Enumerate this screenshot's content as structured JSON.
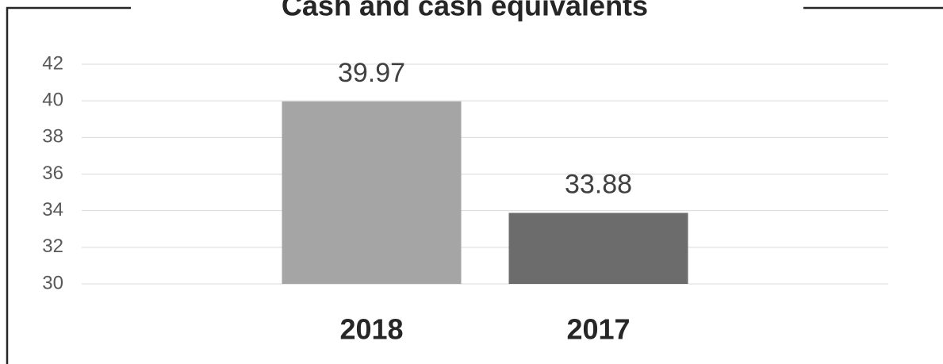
{
  "chart_data": {
    "type": "bar",
    "title": "Cash and cash equivalents",
    "categories": [
      "2018",
      "2017"
    ],
    "values": [
      39.97,
      33.88
    ],
    "colors": [
      "#a5a5a5",
      "#6c6c6c"
    ],
    "ylim": [
      30,
      42
    ],
    "yticks": [
      30,
      32,
      34,
      36,
      38,
      40,
      42
    ],
    "grid": true
  }
}
